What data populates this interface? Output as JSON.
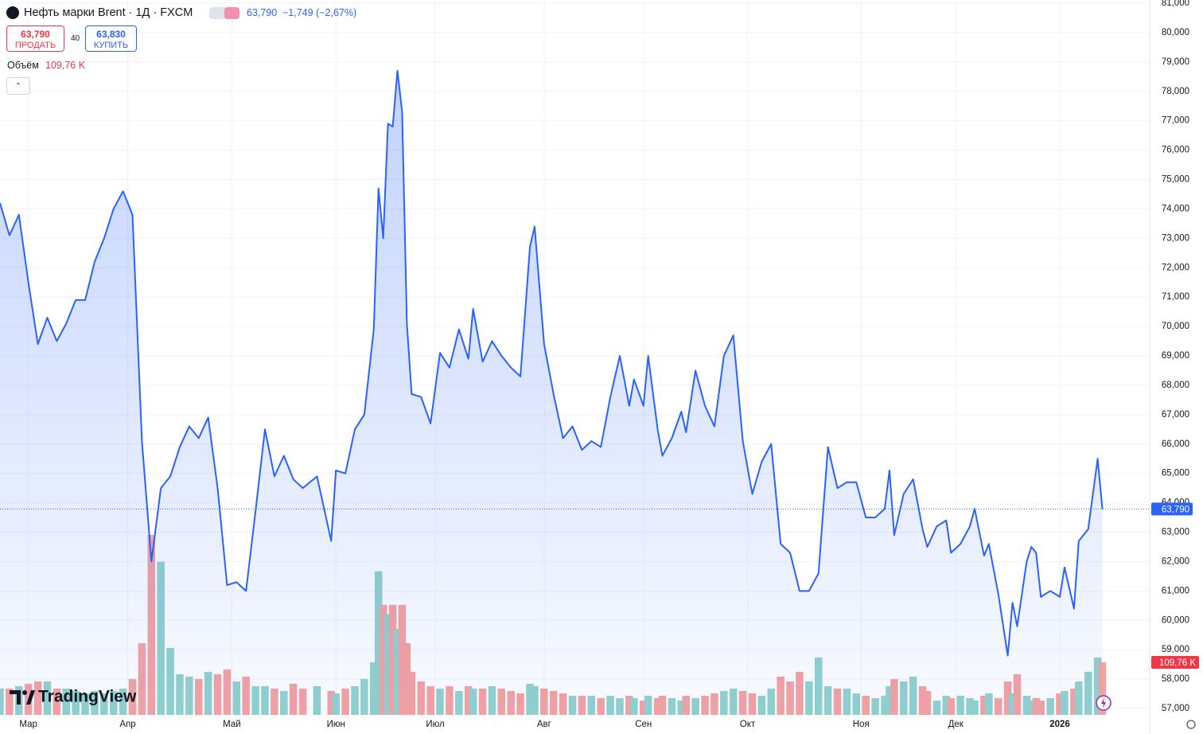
{
  "header": {
    "symbol": "Нефть марки Brent · 1Д · FXCM",
    "last": "63,790",
    "change": "−1,749 (−2,67%)",
    "sell_price": "63,790",
    "sell_label": "ПРОДАТЬ",
    "spread": "40",
    "buy_price": "63,830",
    "buy_label": "КУПИТЬ",
    "volume_label": "Объём",
    "volume_value": "109,76 K"
  },
  "logo": "TradingView",
  "chart_data": {
    "type": "area",
    "color": "#2962ff",
    "x": [
      0,
      2,
      4,
      6,
      8,
      10,
      12,
      14,
      16,
      18,
      20,
      22,
      24,
      26,
      28,
      30,
      32,
      34,
      36,
      38,
      40,
      42,
      44,
      46,
      48,
      50,
      52,
      54,
      56,
      58,
      60,
      62,
      64,
      67,
      70,
      71,
      73,
      75,
      77,
      79,
      80,
      81,
      82,
      83,
      84,
      85,
      86,
      87,
      89,
      91,
      93,
      95,
      97,
      99,
      100,
      102,
      104,
      106,
      108,
      110,
      112,
      113,
      115,
      117,
      119,
      121,
      123,
      125,
      127,
      129,
      131,
      133,
      134,
      136,
      137,
      139,
      140,
      142,
      144,
      145,
      147,
      149,
      151,
      153,
      155,
      157,
      159,
      161,
      163,
      165,
      167,
      169,
      171,
      173,
      175,
      177,
      179,
      181,
      183,
      185,
      187,
      188,
      189,
      191,
      193,
      195,
      196,
      198,
      200,
      201,
      203,
      205,
      206,
      208,
      209,
      211,
      213,
      214,
      215,
      217,
      218,
      219,
      220,
      222,
      224,
      225,
      227,
      228,
      230,
      232,
      233
    ],
    "values": [
      74.2,
      73.1,
      73.8,
      71.5,
      69.4,
      70.3,
      69.5,
      70.1,
      70.9,
      70.9,
      72.2,
      73.0,
      74.0,
      74.6,
      73.8,
      66.1,
      62.0,
      64.5,
      64.9,
      65.9,
      66.6,
      66.2,
      66.9,
      64.5,
      61.2,
      61.3,
      61.0,
      63.7,
      66.5,
      64.9,
      65.6,
      64.8,
      64.5,
      64.9,
      62.7,
      65.1,
      65.0,
      66.5,
      67.0,
      69.9,
      74.7,
      73.0,
      76.9,
      76.8,
      78.7,
      77.3,
      70.1,
      67.7,
      67.6,
      66.7,
      69.1,
      68.6,
      69.9,
      68.9,
      70.6,
      68.8,
      69.5,
      69.0,
      68.6,
      68.3,
      72.7,
      73.4,
      69.4,
      67.7,
      66.2,
      66.6,
      65.8,
      66.1,
      65.9,
      67.6,
      69.0,
      67.3,
      68.2,
      67.3,
      69.0,
      66.5,
      65.6,
      66.2,
      67.1,
      66.4,
      68.5,
      67.3,
      66.6,
      69.0,
      69.7,
      66.1,
      64.3,
      65.4,
      66.0,
      62.6,
      62.3,
      61.0,
      61.0,
      61.6,
      65.9,
      64.5,
      64.7,
      64.7,
      63.5,
      63.5,
      63.8,
      65.1,
      62.9,
      64.3,
      64.8,
      63.1,
      62.5,
      63.2,
      63.4,
      62.3,
      62.6,
      63.2,
      63.8,
      62.2,
      62.6,
      60.9,
      58.8,
      60.6,
      59.8,
      62.0,
      62.5,
      62.3,
      60.8,
      61.0,
      60.8,
      61.8,
      60.4,
      62.7,
      63.1,
      65.5,
      63.79
    ],
    "last_label": "63,790",
    "volume": {
      "up_color": "#92d2cc",
      "down_color": "#f5a3a1",
      "last_label": "109,76 K",
      "values": [
        55,
        55,
        60,
        65,
        70,
        70,
        55,
        55,
        50,
        45,
        50,
        45,
        50,
        55,
        75,
        150,
        376,
        320,
        140,
        85,
        80,
        75,
        90,
        85,
        95,
        70,
        80,
        60,
        60,
        55,
        50,
        65,
        55,
        60,
        50,
        45,
        55,
        60,
        75,
        110,
        300,
        230,
        210,
        230,
        180,
        230,
        150,
        90,
        70,
        60,
        55,
        60,
        50,
        60,
        55,
        55,
        60,
        55,
        50,
        45,
        65,
        60,
        55,
        50,
        45,
        40,
        40,
        40,
        35,
        40,
        35,
        40,
        35,
        30,
        40,
        35,
        40,
        35,
        30,
        40,
        35,
        40,
        45,
        50,
        55,
        50,
        45,
        40,
        55,
        80,
        70,
        90,
        70,
        120,
        60,
        55,
        55,
        45,
        40,
        35,
        40,
        60,
        75,
        70,
        80,
        60,
        50,
        30,
        40,
        35,
        40,
        35,
        30,
        40,
        45,
        35,
        70,
        45,
        85,
        40,
        30,
        35,
        30,
        35,
        45,
        50,
        55,
        70,
        90,
        120,
        109.76
      ]
    },
    "xlim": [
      0,
      243
    ],
    "xticks": [
      {
        "value": 6,
        "label": "Мар"
      },
      {
        "value": 27,
        "label": "Апр"
      },
      {
        "value": 49,
        "label": "Май"
      },
      {
        "value": 71,
        "label": "Июн"
      },
      {
        "value": 92,
        "label": "Июл"
      },
      {
        "value": 115,
        "label": "Авг"
      },
      {
        "value": 136,
        "label": "Сен"
      },
      {
        "value": 158,
        "label": "Окт"
      },
      {
        "value": 182,
        "label": "Ноя"
      },
      {
        "value": 202,
        "label": "Дек"
      },
      {
        "value": 224,
        "label": "2026"
      }
    ],
    "ylim": [
      57,
      81
    ],
    "yticks": [
      {
        "value": 57,
        "label": "57,000"
      },
      {
        "value": 58,
        "label": "58,000"
      },
      {
        "value": 59,
        "label": "59,000"
      },
      {
        "value": 60,
        "label": "60,000"
      },
      {
        "value": 61,
        "label": "61,000"
      },
      {
        "value": 62,
        "label": "62,000"
      },
      {
        "value": 63,
        "label": "63,000"
      },
      {
        "value": 64,
        "label": "64,000"
      },
      {
        "value": 65,
        "label": "65,000"
      },
      {
        "value": 66,
        "label": "66,000"
      },
      {
        "value": 67,
        "label": "67,000"
      },
      {
        "value": 68,
        "label": "68,000"
      },
      {
        "value": 69,
        "label": "69,000"
      },
      {
        "value": 70,
        "label": "70,000"
      },
      {
        "value": 71,
        "label": "71,000"
      },
      {
        "value": 72,
        "label": "72,000"
      },
      {
        "value": 73,
        "label": "73,000"
      },
      {
        "value": 74,
        "label": "74,000"
      },
      {
        "value": 75,
        "label": "75,000"
      },
      {
        "value": 76,
        "label": "76,000"
      },
      {
        "value": 77,
        "label": "77,000"
      },
      {
        "value": 78,
        "label": "78,000"
      },
      {
        "value": 79,
        "label": "79,000"
      },
      {
        "value": 80,
        "label": "80,000"
      },
      {
        "value": 81,
        "label": "81,000"
      }
    ],
    "grid": true
  }
}
